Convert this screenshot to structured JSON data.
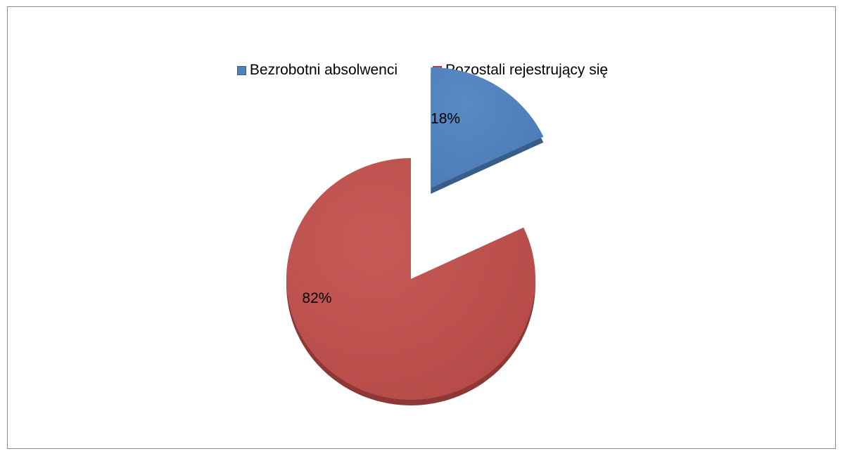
{
  "chart_data": {
    "type": "pie",
    "title": "",
    "categories": [
      "Bezrobotni absolwenci",
      "Pozostali rejestrujący się"
    ],
    "values": [
      18,
      82
    ],
    "data_labels": [
      "18%",
      "82%"
    ],
    "colors": [
      "#4f81bd",
      "#c0504d"
    ],
    "exploded": [
      true,
      false
    ],
    "legend_position": "top",
    "style": "3d-tilted"
  }
}
